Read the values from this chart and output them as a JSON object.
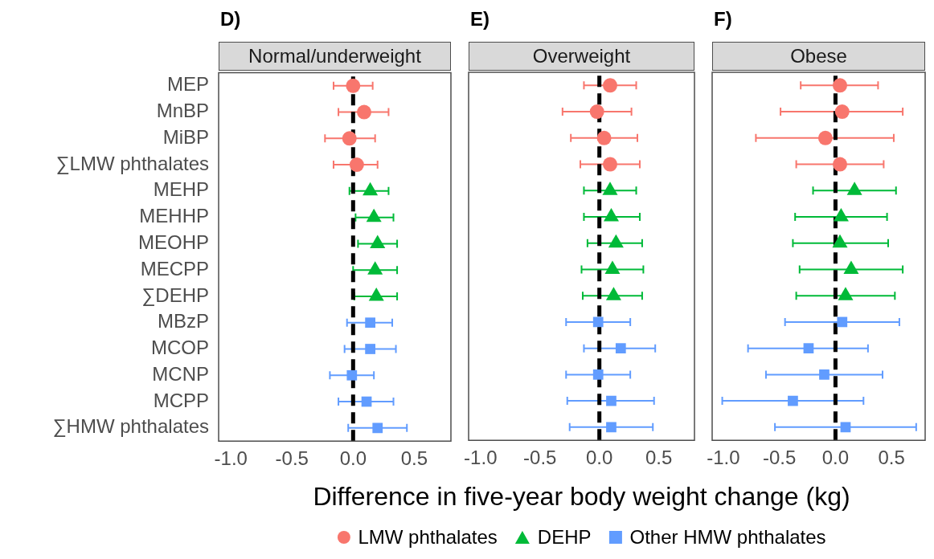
{
  "chart_data": [
    {
      "type": "scatter",
      "title": "D)",
      "subtitle": "Normal/underweight",
      "orientation": "horizontal",
      "categories": [
        "MEP",
        "MnBP",
        "MiBP",
        "∑LMW phthalates",
        "MEHP",
        "MEHHP",
        "MEOHP",
        "MECPP",
        "∑DEHP",
        "MBzP",
        "MCOP",
        "MCNP",
        "MCPP",
        "∑HMW phthalates"
      ],
      "series": [
        {
          "color": "#f8766d",
          "marker": "circle",
          "values": [
            0.0,
            0.09,
            -0.03,
            0.03,
            null,
            null,
            null,
            null,
            null,
            null,
            null,
            null,
            null,
            null
          ],
          "errors": [
            [
              -0.16,
              0.16
            ],
            [
              -0.12,
              0.29
            ],
            [
              -0.23,
              0.18
            ],
            [
              -0.16,
              0.2
            ],
            null,
            null,
            null,
            null,
            null,
            null,
            null,
            null,
            null,
            null
          ]
        },
        {
          "color": "#00ba38",
          "marker": "triangle",
          "values": [
            null,
            null,
            null,
            null,
            0.14,
            0.17,
            0.2,
            0.18,
            0.19,
            null,
            null,
            null,
            null,
            null
          ],
          "errors": [
            null,
            null,
            null,
            null,
            [
              -0.03,
              0.29
            ],
            [
              0.02,
              0.33
            ],
            [
              0.04,
              0.36
            ],
            [
              0.0,
              0.36
            ],
            [
              0.01,
              0.36
            ],
            null,
            null,
            null,
            null,
            null
          ]
        },
        {
          "color": "#619cff",
          "marker": "square",
          "values": [
            null,
            null,
            null,
            null,
            null,
            null,
            null,
            null,
            null,
            0.14,
            0.14,
            -0.01,
            0.11,
            0.2
          ],
          "errors": [
            null,
            null,
            null,
            null,
            null,
            null,
            null,
            null,
            null,
            [
              -0.05,
              0.32
            ],
            [
              -0.07,
              0.35
            ],
            [
              -0.19,
              0.17
            ],
            [
              -0.12,
              0.33
            ],
            [
              -0.04,
              0.44
            ]
          ]
        }
      ],
      "xlim": [
        -1.1,
        0.8
      ],
      "xticks": [
        {
          "value": -1,
          "label": "-1.0"
        },
        {
          "value": -0.5,
          "label": "-0.5"
        },
        {
          "value": 0,
          "label": "0.0"
        },
        {
          "value": 0.5,
          "label": "0.5"
        }
      ],
      "ref_lines": [
        {
          "axis": "x",
          "value": 0,
          "color": "#000000",
          "line_style": "dashed"
        }
      ]
    },
    {
      "type": "scatter",
      "title": "E)",
      "subtitle": "Overweight",
      "orientation": "horizontal",
      "xlabel": "Difference in five-year body weight change (kg)",
      "legend": "bottom",
      "tick_labels": "x",
      "categories": [
        null,
        null,
        null,
        null,
        null,
        null,
        null,
        null,
        null,
        null,
        null,
        null,
        null,
        null
      ],
      "series": [
        {
          "name": "LMW phthalates",
          "color": "#f8766d",
          "marker": "circle",
          "values": [
            0.09,
            -0.02,
            0.04,
            0.09,
            null,
            null,
            null,
            null,
            null,
            null,
            null,
            null,
            null,
            null
          ],
          "errors": [
            [
              -0.13,
              0.31
            ],
            [
              -0.31,
              0.27
            ],
            [
              -0.24,
              0.32
            ],
            [
              -0.16,
              0.34
            ],
            null,
            null,
            null,
            null,
            null,
            null,
            null,
            null,
            null,
            null
          ]
        },
        {
          "name": "DEHP",
          "color": "#00ba38",
          "marker": "triangle",
          "values": [
            null,
            null,
            null,
            null,
            0.09,
            0.1,
            0.14,
            0.11,
            0.12,
            null,
            null,
            null,
            null,
            null
          ],
          "errors": [
            null,
            null,
            null,
            null,
            [
              -0.13,
              0.31
            ],
            [
              -0.13,
              0.34
            ],
            [
              -0.1,
              0.36
            ],
            [
              -0.15,
              0.37
            ],
            [
              -0.14,
              0.36
            ],
            null,
            null,
            null,
            null,
            null
          ]
        },
        {
          "name": "Other HMW phthalates",
          "color": "#619cff",
          "marker": "square",
          "values": [
            null,
            null,
            null,
            null,
            null,
            null,
            null,
            null,
            null,
            -0.01,
            0.18,
            -0.01,
            0.1,
            0.1
          ],
          "errors": [
            null,
            null,
            null,
            null,
            null,
            null,
            null,
            null,
            null,
            [
              -0.28,
              0.26
            ],
            [
              -0.13,
              0.47
            ],
            [
              -0.28,
              0.26
            ],
            [
              -0.27,
              0.46
            ],
            [
              -0.25,
              0.45
            ]
          ]
        }
      ],
      "xlim": [
        -1.1,
        0.8
      ],
      "xticks": [
        {
          "value": -1,
          "label": "-1.0"
        },
        {
          "value": -0.5,
          "label": "-0.5"
        },
        {
          "value": 0,
          "label": "0.0"
        },
        {
          "value": 0.5,
          "label": "0.5"
        }
      ],
      "ref_lines": [
        {
          "axis": "x",
          "value": 0,
          "color": "#000000",
          "line_style": "dashed"
        }
      ]
    },
    {
      "type": "scatter",
      "title": "F)",
      "subtitle": "Obese",
      "orientation": "horizontal",
      "tick_labels": "x",
      "categories": [
        null,
        null,
        null,
        null,
        null,
        null,
        null,
        null,
        null,
        null,
        null,
        null,
        null,
        null
      ],
      "series": [
        {
          "color": "#f8766d",
          "marker": "circle",
          "values": [
            0.04,
            0.06,
            -0.09,
            0.04,
            null,
            null,
            null,
            null,
            null,
            null,
            null,
            null,
            null,
            null
          ],
          "errors": [
            [
              -0.31,
              0.38
            ],
            [
              -0.49,
              0.6
            ],
            [
              -0.71,
              0.52
            ],
            [
              -0.35,
              0.43
            ],
            null,
            null,
            null,
            null,
            null,
            null,
            null,
            null,
            null,
            null
          ]
        },
        {
          "color": "#00ba38",
          "marker": "triangle",
          "values": [
            null,
            null,
            null,
            null,
            0.17,
            0.05,
            0.04,
            0.14,
            0.09,
            null,
            null,
            null,
            null,
            null
          ],
          "errors": [
            null,
            null,
            null,
            null,
            [
              -0.2,
              0.54
            ],
            [
              -0.36,
              0.46
            ],
            [
              -0.38,
              0.47
            ],
            [
              -0.32,
              0.6
            ],
            [
              -0.35,
              0.53
            ],
            null,
            null,
            null,
            null,
            null
          ]
        },
        {
          "color": "#619cff",
          "marker": "square",
          "values": [
            null,
            null,
            null,
            null,
            null,
            null,
            null,
            null,
            null,
            0.06,
            -0.24,
            -0.1,
            -0.38,
            0.09
          ],
          "errors": [
            null,
            null,
            null,
            null,
            null,
            null,
            null,
            null,
            null,
            [
              -0.45,
              0.57
            ],
            [
              -0.78,
              0.29
            ],
            [
              -0.62,
              0.42
            ],
            [
              -1.01,
              0.25
            ],
            [
              -0.54,
              0.72
            ]
          ]
        }
      ],
      "xlim": [
        -1.1,
        0.8
      ],
      "xticks": [
        {
          "value": -1,
          "label": "-1.0"
        },
        {
          "value": -0.5,
          "label": "-0.5"
        },
        {
          "value": 0,
          "label": "0.0"
        },
        {
          "value": 0.5,
          "label": "0.5"
        }
      ],
      "ref_lines": [
        {
          "axis": "x",
          "value": 0,
          "color": "#000000",
          "line_style": "dashed"
        }
      ]
    }
  ]
}
